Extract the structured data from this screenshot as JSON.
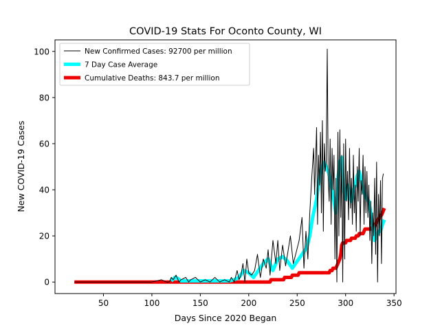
{
  "chart_data": {
    "type": "line",
    "title": "COVID-19 Stats For Oconto County, WI",
    "xlabel": "Days Since 2020 Began",
    "ylabel": "New COVID-19 Cases",
    "xlim": [
      0,
      352
    ],
    "ylim": [
      -5,
      105
    ],
    "xticks": [
      50,
      100,
      150,
      200,
      250,
      300,
      350
    ],
    "yticks": [
      0,
      20,
      40,
      60,
      80,
      100
    ],
    "grid": false,
    "legend_position": "top-left",
    "series": [
      {
        "name": "New Confirmed Cases: 92700 per million",
        "color": "#000000",
        "x": [
          20,
          90,
          100,
          110,
          115,
          118,
          120,
          122,
          125,
          128,
          130,
          135,
          138,
          140,
          145,
          150,
          155,
          160,
          165,
          170,
          175,
          180,
          182,
          185,
          188,
          190,
          192,
          194,
          196,
          198,
          200,
          203,
          206,
          209,
          212,
          215,
          218,
          220,
          222,
          225,
          228,
          230,
          232,
          235,
          238,
          240,
          243,
          246,
          249,
          252,
          255,
          257,
          259,
          261,
          263,
          265,
          267,
          268,
          270,
          271,
          272,
          273,
          274,
          275,
          276,
          277,
          278,
          279,
          280,
          281,
          282,
          283,
          284,
          285,
          286,
          287,
          288,
          289,
          290,
          291,
          292,
          293,
          294,
          295,
          296,
          297,
          298,
          299,
          300,
          301,
          302,
          303,
          304,
          305,
          306,
          307,
          308,
          309,
          310,
          311,
          312,
          313,
          314,
          315,
          316,
          317,
          318,
          319,
          320,
          321,
          322,
          323,
          324,
          325,
          326,
          327,
          328,
          329,
          330,
          331,
          332,
          333,
          334,
          335,
          336,
          337,
          338,
          339
        ],
        "values": [
          0,
          0,
          0,
          1,
          0,
          0,
          2,
          1,
          3,
          0,
          1,
          2,
          0,
          1,
          2,
          0,
          1,
          0,
          2,
          0,
          1,
          0,
          2,
          0,
          5,
          1,
          3,
          8,
          0,
          10,
          4,
          3,
          5,
          12,
          2,
          10,
          6,
          14,
          3,
          18,
          8,
          18,
          5,
          16,
          7,
          12,
          20,
          8,
          13,
          18,
          28,
          6,
          22,
          10,
          30,
          45,
          58,
          38,
          67,
          25,
          55,
          42,
          65,
          30,
          70,
          22,
          60,
          48,
          52,
          101,
          45,
          35,
          62,
          25,
          58,
          40,
          55,
          10,
          45,
          0,
          65,
          20,
          66,
          28,
          55,
          0,
          60,
          10,
          62,
          35,
          48,
          27,
          58,
          32,
          45,
          25,
          55,
          30,
          42,
          22,
          50,
          35,
          58,
          20,
          44,
          38,
          55,
          25,
          50,
          30,
          48,
          28,
          42,
          18,
          35,
          8,
          30,
          20,
          45,
          12,
          52,
          0,
          38,
          20,
          44,
          8,
          45,
          47
        ]
      },
      {
        "name": "7 Day Case Average",
        "color": "#00ffff",
        "x": [
          120,
          124,
          127,
          130,
          140,
          150,
          160,
          170,
          180,
          185,
          190,
          195,
          200,
          205,
          210,
          215,
          220,
          225,
          230,
          235,
          240,
          245,
          250,
          255,
          260,
          263,
          266,
          270,
          273,
          276,
          278,
          280,
          282,
          284,
          286,
          288,
          290,
          292,
          294,
          296,
          298,
          300,
          302,
          304,
          306,
          308,
          310,
          312,
          314,
          316,
          318,
          320,
          322,
          324,
          326,
          328,
          330,
          332,
          334,
          336,
          338,
          340
        ],
        "values": [
          0.5,
          2,
          1.5,
          0.5,
          0.5,
          0.5,
          0.5,
          0.5,
          0.5,
          1,
          2,
          5,
          4,
          2,
          5,
          8,
          10,
          5,
          10,
          11,
          9,
          6,
          9,
          12,
          15,
          20,
          28,
          36,
          45,
          50,
          52,
          50,
          48,
          45,
          40,
          35,
          30,
          45,
          52,
          54,
          40,
          36,
          42,
          38,
          35,
          40,
          42,
          46,
          48,
          45,
          40,
          38,
          36,
          35,
          30,
          25,
          18,
          20,
          22,
          22,
          25,
          27
        ]
      },
      {
        "name": "Cumulative Deaths: 843.7 per million",
        "color": "#ee0000",
        "x": [
          20,
          222,
          223,
          236,
          237,
          240,
          241,
          244,
          245,
          250,
          251,
          252,
          253,
          254,
          255,
          283,
          284,
          286,
          287,
          290,
          291,
          292,
          293,
          294,
          295,
          296,
          297,
          300,
          301,
          305,
          306,
          310,
          311,
          313,
          314,
          318,
          319,
          320,
          321,
          325,
          326,
          328,
          330,
          331,
          332,
          333,
          334,
          335,
          336,
          337,
          338,
          339,
          340
        ],
        "values": [
          0,
          0,
          1,
          1,
          2,
          2,
          2,
          2,
          3,
          3,
          3,
          4,
          4,
          4,
          4,
          4,
          5,
          5,
          6,
          6,
          7,
          8,
          9,
          10,
          12,
          16,
          17,
          17,
          18,
          18,
          19,
          19,
          20,
          20,
          21,
          21,
          22,
          23,
          23,
          23,
          23,
          24,
          24,
          25,
          26,
          27,
          27,
          28,
          29,
          29,
          30,
          31,
          32
        ]
      }
    ]
  }
}
